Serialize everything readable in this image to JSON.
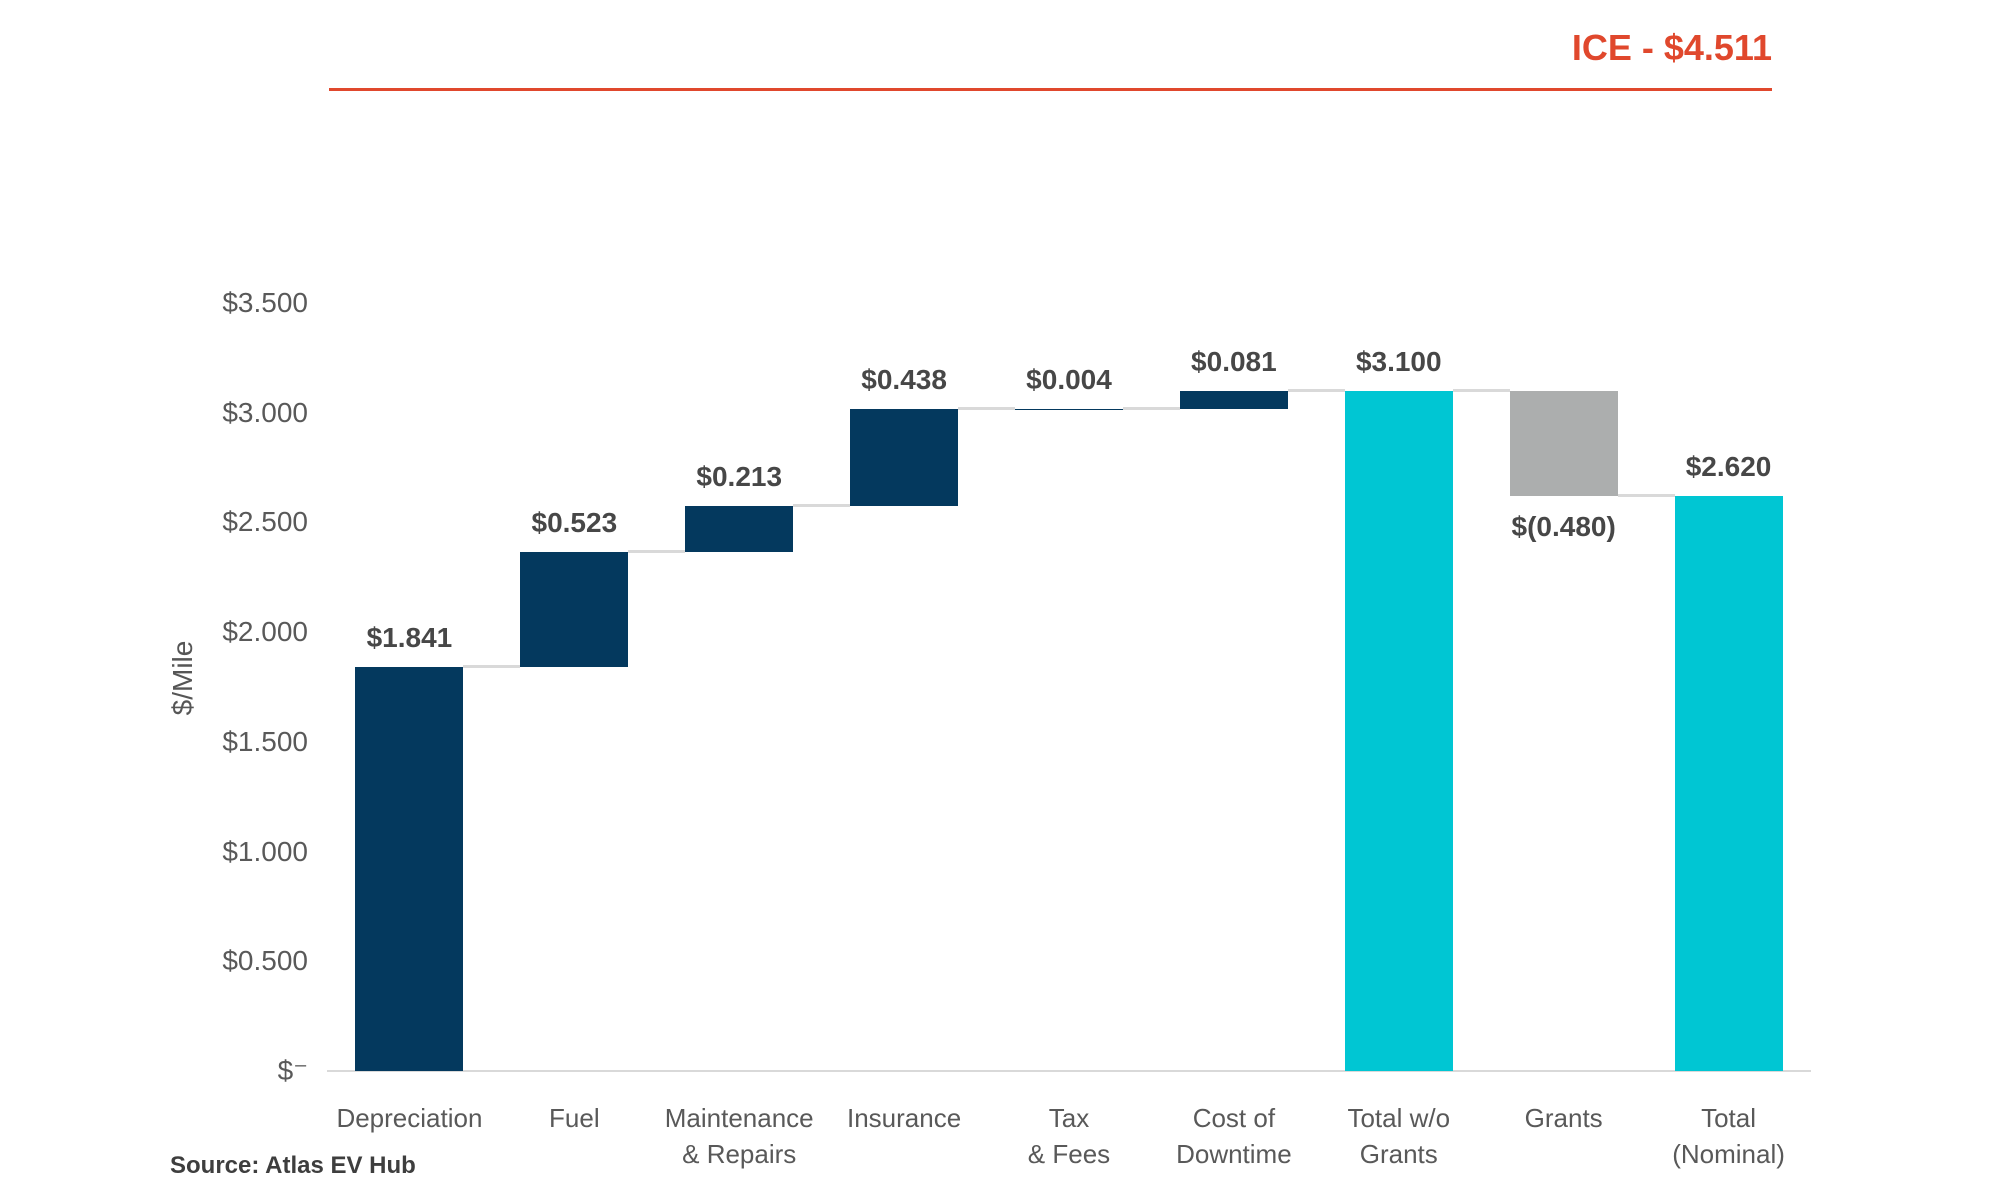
{
  "source_note": "Source: Atlas EV Hub",
  "chart_data": {
    "type": "bar",
    "subtype": "waterfall",
    "title": "ICE - $4.511",
    "ylabel": "$/Mile",
    "ylim": [
      0,
      3.5
    ],
    "ytick_step": 0.5,
    "ytick_labels": [
      "$⁻",
      "$0.500",
      "$1.000",
      "$1.500",
      "$2.000",
      "$2.500",
      "$3.000",
      "$3.500"
    ],
    "grid": false,
    "legend": "none",
    "bars": [
      {
        "label_lines": [
          "Depreciation"
        ],
        "value": 1.841,
        "display": "$1.841",
        "kind": "increase"
      },
      {
        "label_lines": [
          "Fuel"
        ],
        "value": 0.523,
        "display": "$0.523",
        "kind": "increase"
      },
      {
        "label_lines": [
          "Maintenance",
          "& Repairs"
        ],
        "value": 0.213,
        "display": "$0.213",
        "kind": "increase"
      },
      {
        "label_lines": [
          "Insurance"
        ],
        "value": 0.438,
        "display": "$0.438",
        "kind": "increase"
      },
      {
        "label_lines": [
          "Tax",
          "& Fees"
        ],
        "value": 0.004,
        "display": "$0.004",
        "kind": "increase"
      },
      {
        "label_lines": [
          "Cost of",
          "Downtime"
        ],
        "value": 0.081,
        "display": "$0.081",
        "kind": "increase"
      },
      {
        "label_lines": [
          "Total w/o",
          "Grants"
        ],
        "value": 3.1,
        "display": "$3.100",
        "kind": "total"
      },
      {
        "label_lines": [
          "Grants"
        ],
        "value": -0.48,
        "display": "$(0.480)",
        "kind": "decrease"
      },
      {
        "label_lines": [
          "Total",
          "(Nominal)"
        ],
        "value": 2.62,
        "display": "$2.620",
        "kind": "total"
      }
    ],
    "colors": {
      "increase": "#04395e",
      "total": "#00c6d3",
      "decrease": "#acaeae",
      "accent_red": "#e0482d",
      "axis_gray": "#d9d9d9"
    }
  }
}
